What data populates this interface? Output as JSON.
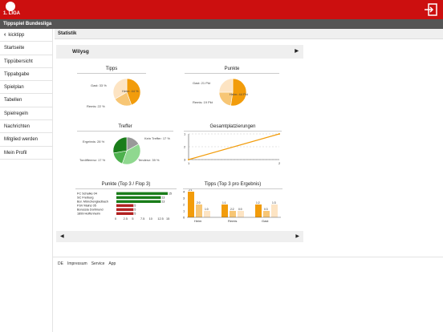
{
  "header": {
    "logo_text": "1. LIGA",
    "app_title": "Tippspiel Bundesliga"
  },
  "sidebar": {
    "back_label": "kicktipp",
    "items": [
      {
        "label": "Startseite"
      },
      {
        "label": "Tippübersicht"
      },
      {
        "label": "Tippabgabe"
      },
      {
        "label": "Spielplan"
      },
      {
        "label": "Tabellen"
      },
      {
        "label": "Spielregeln"
      },
      {
        "label": "Nachrichten"
      },
      {
        "label": "Mitglied werden"
      },
      {
        "label": "Mein Profil"
      }
    ]
  },
  "main": {
    "section_title": "Statistik",
    "user_name": "Wilysg"
  },
  "colors": {
    "header_red": "#cc0f0f",
    "orange": "#f29c0b",
    "light_orange": "#f7c675",
    "pale_orange": "#fde4c3",
    "dark_green": "#1a7d1a",
    "green": "#4db14d",
    "light_green": "#8fd88f",
    "gray": "#999999",
    "dark_red": "#b22222"
  },
  "chart_data": [
    {
      "type": "pie",
      "title": "Tipps",
      "labels": [
        "Heim: 44 %",
        "Remis: 22 %",
        "Gast: 33 %"
      ],
      "values": [
        44,
        22,
        33
      ]
    },
    {
      "type": "pie",
      "title": "Punkte",
      "labels": [
        "Heim: 44 Pkt",
        "Remis: 19 Pkt",
        "Gast: 21 Pkt"
      ],
      "values": [
        44,
        19,
        21
      ]
    },
    {
      "type": "pie",
      "title": "Treffer",
      "labels": [
        "Kein Treffer: 17 %",
        "Tendenz: 39 %",
        "Tordifferenz: 17 %",
        "Ergebnis: 28 %"
      ],
      "values": [
        17,
        39,
        17,
        28
      ]
    },
    {
      "type": "line",
      "title": "Gesamtplatzierungen",
      "x": [
        1,
        2
      ],
      "y": [
        3,
        1
      ],
      "xlim": [
        1,
        2
      ],
      "ylim": [
        3,
        1
      ],
      "xticks": [
        "1",
        "2"
      ],
      "yticks": [
        "1",
        "2",
        "3"
      ]
    },
    {
      "type": "bar",
      "orientation": "horizontal",
      "title": "Punkte (Top 3 / Flop 3)",
      "categories": [
        "FC Schalke 04",
        "SC Freiburg",
        "Bor. Mönchengladbach",
        "FSV Mainz 05",
        "Borussia Dortmund",
        "1899 Hoffenheim"
      ],
      "values": [
        15,
        13,
        13,
        5,
        5,
        5
      ],
      "xlim": [
        0,
        15
      ],
      "xticks": [
        "0",
        "2.5",
        "5",
        "7.5",
        "10",
        "12.5",
        "15"
      ]
    },
    {
      "type": "bar",
      "title": "Tipps (Top 3 pro Ergebnis)",
      "categories": [
        "Heim",
        "Remis",
        "Gast"
      ],
      "series": [
        {
          "values": [
            4,
            2,
            1
          ]
        },
        {
          "values": [
            2,
            1,
            1
          ]
        },
        {
          "values": [
            2,
            1,
            2
          ]
        }
      ],
      "bar_labels": [
        [
          "2:1",
          "2:0",
          "1:0"
        ],
        [
          "1:1",
          "2:2",
          "0:0"
        ],
        [
          "1:2",
          "0:3",
          "1:3"
        ]
      ],
      "ylim": [
        0,
        4
      ],
      "yticks": [
        "0",
        "1",
        "2",
        "3",
        "4"
      ]
    }
  ],
  "footer": {
    "links": [
      "DE",
      "Impressum",
      "Service",
      "App"
    ]
  }
}
